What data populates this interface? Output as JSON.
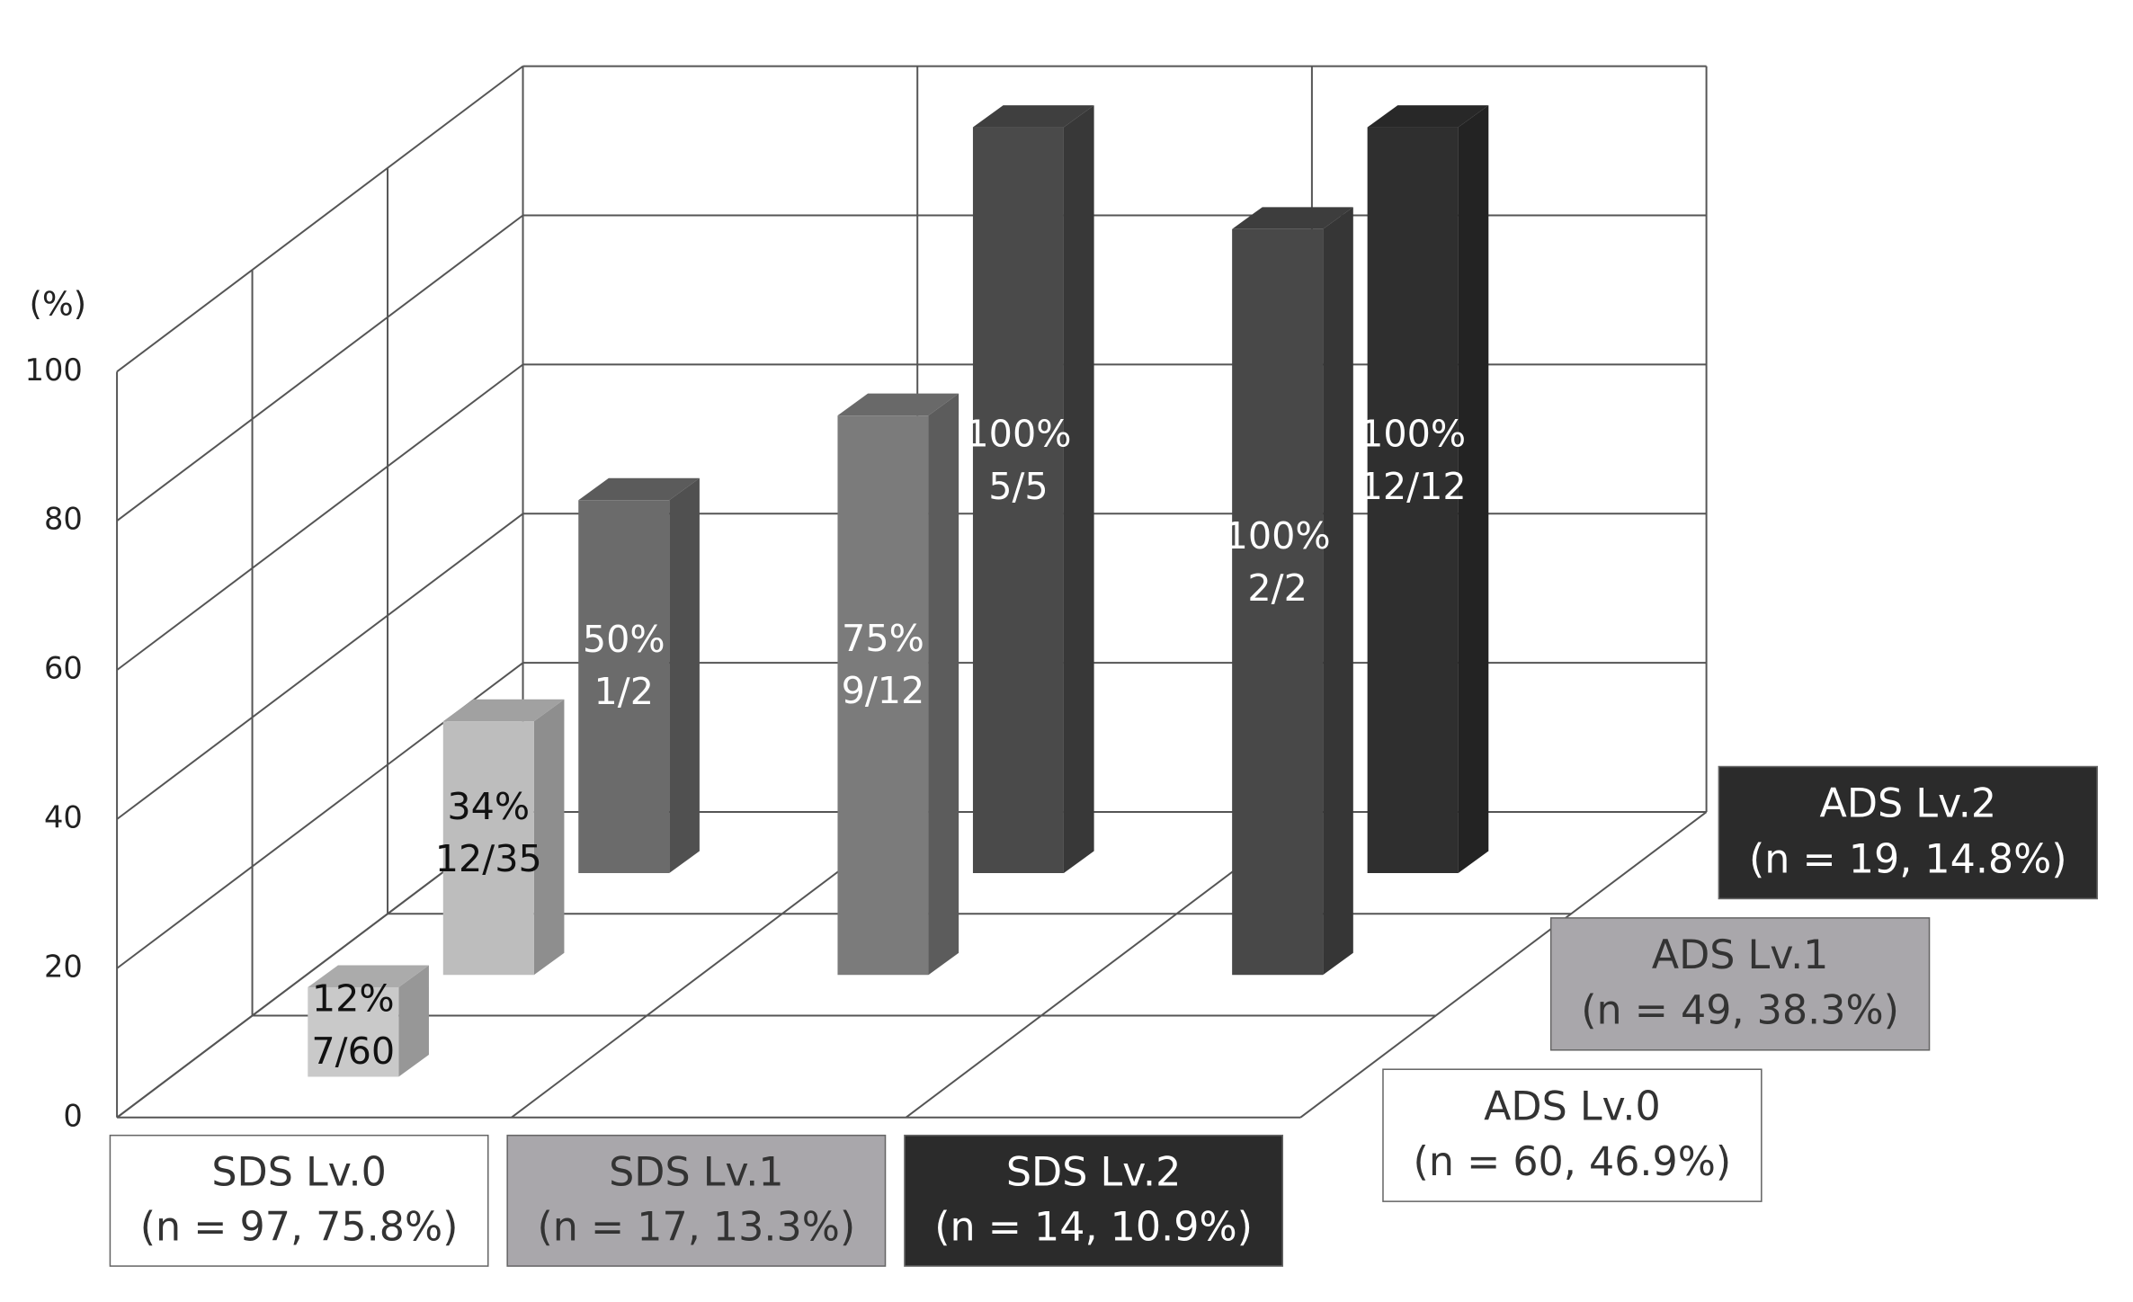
{
  "chart_data": {
    "type": "bar3d",
    "y_label": "(%)",
    "ylim": [
      0,
      100
    ],
    "yticks": [
      0,
      20,
      40,
      60,
      80,
      100
    ],
    "categories": [
      "SDS Lv.0",
      "SDS Lv.1",
      "SDS Lv.2"
    ],
    "category_notes": [
      "(n = 97, 75.8%)",
      "(n = 17, 13.3%)",
      "(n = 14, 10.9%)"
    ],
    "category_colors": [
      "#ffffff",
      "#a9a7ab",
      "#2b2b2b"
    ],
    "series": [
      {
        "name": "ADS Lv.0",
        "note": "(n = 60, 46.9%)",
        "color": "#ffffff",
        "bar_colors": [
          "#c9c9c9",
          null,
          null
        ],
        "values": [
          12,
          null,
          null
        ],
        "value_labels": [
          "12%",
          null,
          null
        ],
        "counts": [
          "7/60",
          null,
          null
        ]
      },
      {
        "name": "ADS Lv.1",
        "note": "(n = 49, 38.3%)",
        "color": "#a9a7ab",
        "bar_colors": [
          "#bdbdbd",
          "#7b7b7b",
          "#484848"
        ],
        "values": [
          34,
          75,
          100
        ],
        "value_labels": [
          "34%",
          "75%",
          "100%"
        ],
        "counts": [
          "12/35",
          "9/12",
          "2/2"
        ]
      },
      {
        "name": "ADS Lv.2",
        "note": "(n = 19, 14.8%)",
        "color": "#2b2b2b",
        "bar_colors": [
          "#6b6b6b",
          "#4a4a4a",
          "#2f2f2f"
        ],
        "values": [
          50,
          100,
          100
        ],
        "value_labels": [
          "50%",
          "100%",
          "100%"
        ],
        "counts": [
          "1/2",
          "5/5",
          "12/12"
        ]
      }
    ]
  }
}
